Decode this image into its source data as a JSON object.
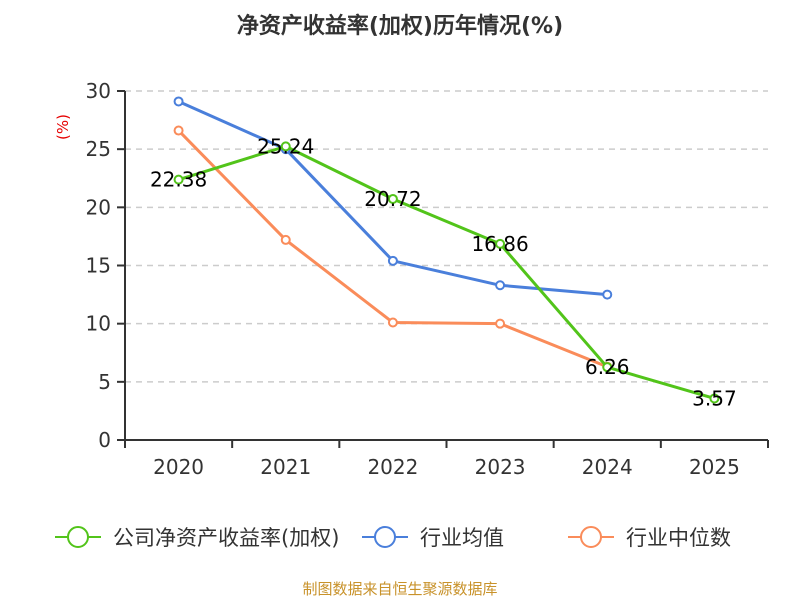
{
  "chart_data": {
    "type": "line",
    "title": "净资产收益率(加权)历年情况(%)",
    "xlabel": "",
    "ylabel": "(%)",
    "x": [
      "2020",
      "2021",
      "2022",
      "2023",
      "2024",
      "2025"
    ],
    "ylim": [
      0,
      30
    ],
    "yticks": [
      0,
      5,
      10,
      15,
      20,
      25,
      30
    ],
    "grid": true,
    "legend_position": "bottom",
    "series": [
      {
        "name": "公司净资产收益率(加权)",
        "color": "#52c41a",
        "values": [
          22.38,
          25.24,
          20.72,
          16.86,
          6.26,
          3.57
        ],
        "labels": [
          "22.38",
          "25.24",
          "20.72",
          "16.86",
          "6.26",
          "3.57"
        ]
      },
      {
        "name": "行业均值",
        "color": "#4a7fdb",
        "values": [
          29.1,
          25.0,
          15.4,
          13.3,
          12.5,
          null
        ]
      },
      {
        "name": "行业中位数",
        "color": "#fa8c5a",
        "values": [
          26.6,
          17.2,
          10.1,
          10.0,
          6.3,
          null
        ]
      }
    ],
    "source": "制图数据来自恒生聚源数据库"
  }
}
